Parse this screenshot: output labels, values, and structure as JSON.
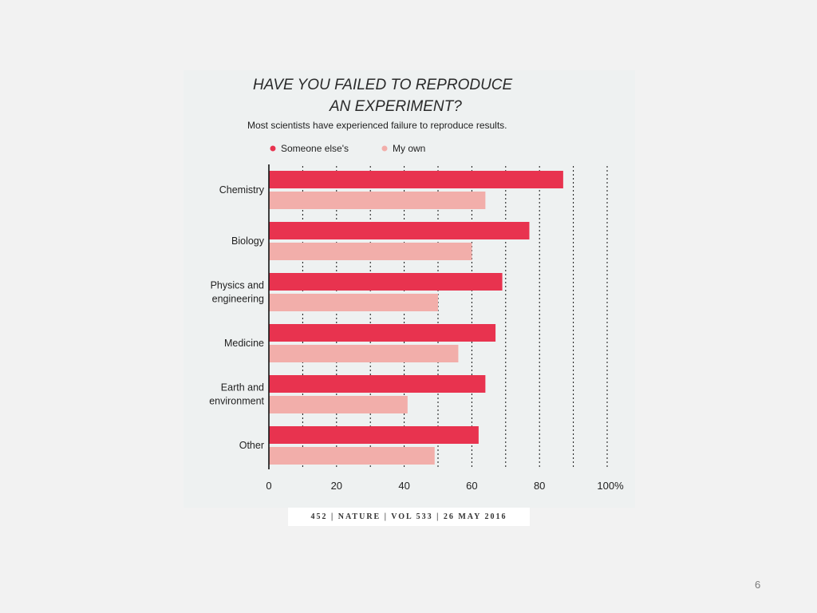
{
  "chart_data": {
    "type": "bar",
    "orientation": "horizontal",
    "title": "HAVE YOU FAILED TO REPRODUCE AN EXPERIMENT?",
    "title_lines": [
      "HAVE YOU FAILED TO REPRODUCE",
      "AN EXPERIMENT?"
    ],
    "subtitle": "Most scientists have experienced failure to reproduce results.",
    "categories": [
      [
        "Chemistry"
      ],
      [
        "Biology"
      ],
      [
        "Physics and",
        "engineering"
      ],
      [
        "Medicine"
      ],
      [
        "Earth and",
        "environment"
      ],
      [
        "Other"
      ]
    ],
    "series": [
      {
        "name": "Someone else's",
        "color": "#e8334f",
        "values": [
          87,
          77,
          69,
          67,
          64,
          62
        ]
      },
      {
        "name": "My own",
        "color": "#f2aeaa",
        "values": [
          64,
          60,
          50,
          56,
          41,
          49
        ]
      }
    ],
    "xlim": [
      0,
      100
    ],
    "xticks": [
      0,
      20,
      40,
      60,
      80,
      100
    ],
    "xtick_labels": [
      "0",
      "20",
      "40",
      "60",
      "80",
      "100%"
    ],
    "grid": "vertical dotted every 10",
    "legend": "top-left"
  },
  "citation": "452 | NATURE | VOL 533 | 26 MAY 2016",
  "slide_number": "6"
}
